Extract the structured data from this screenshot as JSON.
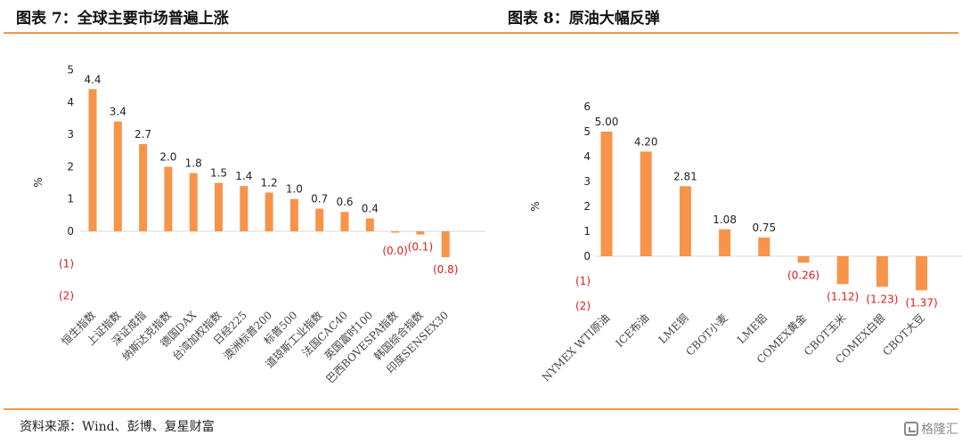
{
  "header": {
    "left_title": "图表 7：全球主要市场普遍上涨",
    "right_title": "图表 8：原油大幅反弹"
  },
  "footer": {
    "source": "资料来源：Wind、彭博、复星财富",
    "watermark": "格隆汇"
  },
  "colors": {
    "bar": "#f7944a",
    "rule": "#f0974a",
    "negative_text": "#e01b1b"
  },
  "chart_data": [
    {
      "type": "bar",
      "title": "",
      "ylabel": "%",
      "ylim": [
        -2,
        5
      ],
      "yticks": [
        "5",
        "4",
        "3",
        "2",
        "1",
        "0",
        "(1)",
        "(2)"
      ],
      "categories": [
        "恒生指数",
        "上证指数",
        "深证成指",
        "纳斯达克指数",
        "德国DAX",
        "台湾加权指数",
        "日经225",
        "澳洲标普200",
        "标普500",
        "道琼斯工业指数",
        "法国CAC40",
        "英国富时100",
        "巴西BOVESPA指数",
        "韩国综合指数",
        "印度SENSEX30"
      ],
      "values": [
        4.4,
        3.4,
        2.7,
        2.0,
        1.8,
        1.5,
        1.4,
        1.2,
        1.0,
        0.7,
        0.6,
        0.4,
        -0.01,
        -0.1,
        -0.8
      ],
      "labels": [
        "4.4",
        "3.4",
        "2.7",
        "2.0",
        "1.8",
        "1.5",
        "1.4",
        "1.2",
        "1.0",
        "0.7",
        "0.6",
        "0.4",
        "(0.0)",
        "(0.1)",
        "(0.8)"
      ],
      "grid": false,
      "legend": "none"
    },
    {
      "type": "bar",
      "title": "",
      "ylabel": "%",
      "ylim": [
        -2,
        6
      ],
      "yticks": [
        "6",
        "5",
        "4",
        "3",
        "2",
        "1",
        "0",
        "(1)",
        "(2)"
      ],
      "categories": [
        "NYMEX WTI原油",
        "ICE布油",
        "LME铜",
        "CBOT小麦",
        "LME铝",
        "COMEX黄金",
        "CBOT玉米",
        "COMEX白银",
        "CBOT大豆"
      ],
      "values": [
        5.0,
        4.2,
        2.81,
        1.08,
        0.75,
        -0.26,
        -1.12,
        -1.23,
        -1.37
      ],
      "labels": [
        "5.00",
        "4.20",
        "2.81",
        "1.08",
        "0.75",
        "(0.26)",
        "(1.12)",
        "(1.23)",
        "(1.37)"
      ],
      "grid": false,
      "legend": "none"
    }
  ]
}
